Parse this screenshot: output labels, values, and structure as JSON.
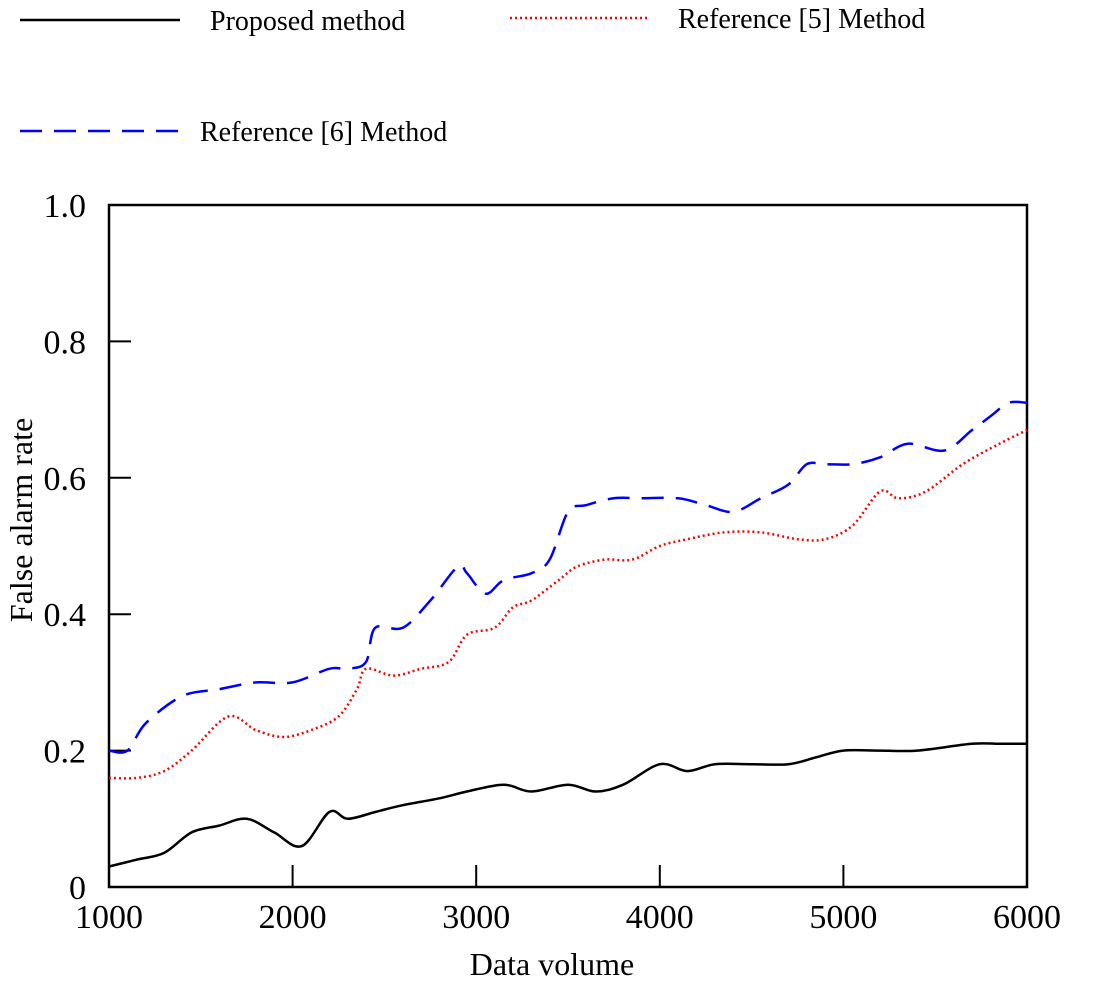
{
  "chart_data": {
    "type": "line",
    "xlabel": "Data volume",
    "ylabel": "False alarm rate",
    "xlim": [
      1000,
      6000
    ],
    "ylim": [
      0,
      1.0
    ],
    "x_ticks": [
      "1000",
      "2000",
      "3000",
      "4000",
      "5000",
      "6000"
    ],
    "y_ticks": [
      "0",
      "0.2",
      "0.4",
      "0.6",
      "0.8",
      "1.0"
    ],
    "legend_position": "top",
    "series": [
      {
        "name": "Proposed method",
        "color": "#000000",
        "style": "solid",
        "x": [
          1000,
          1150,
          1300,
          1450,
          1600,
          1750,
          1900,
          2050,
          2200,
          2300,
          2450,
          2600,
          2800,
          2950,
          3150,
          3300,
          3500,
          3650,
          3800,
          4000,
          4150,
          4300,
          4500,
          4700,
          4850,
          5000,
          5200,
          5400,
          5700,
          5850,
          6000
        ],
        "y": [
          0.03,
          0.04,
          0.05,
          0.08,
          0.09,
          0.1,
          0.08,
          0.06,
          0.11,
          0.1,
          0.11,
          0.12,
          0.13,
          0.14,
          0.15,
          0.14,
          0.15,
          0.14,
          0.15,
          0.18,
          0.17,
          0.18,
          0.18,
          0.18,
          0.19,
          0.2,
          0.2,
          0.2,
          0.21,
          0.21,
          0.21
        ]
      },
      {
        "name": "Reference [5] Method",
        "color": "#ff0000",
        "style": "dotted",
        "x": [
          1000,
          1150,
          1300,
          1450,
          1650,
          1800,
          1950,
          2100,
          2250,
          2350,
          2400,
          2550,
          2700,
          2850,
          2950,
          3100,
          3200,
          3300,
          3450,
          3550,
          3700,
          3850,
          4000,
          4150,
          4350,
          4550,
          4750,
          4900,
          5050,
          5200,
          5300,
          5450,
          5650,
          5850,
          6000
        ],
        "y": [
          0.16,
          0.16,
          0.17,
          0.2,
          0.25,
          0.23,
          0.22,
          0.23,
          0.25,
          0.29,
          0.32,
          0.31,
          0.32,
          0.33,
          0.37,
          0.38,
          0.41,
          0.42,
          0.45,
          0.47,
          0.48,
          0.48,
          0.5,
          0.51,
          0.52,
          0.52,
          0.51,
          0.51,
          0.53,
          0.58,
          0.57,
          0.58,
          0.62,
          0.65,
          0.67
        ]
      },
      {
        "name": "Reference [6] Method",
        "color": "#0000ff",
        "style": "dashed",
        "x": [
          1000,
          1100,
          1200,
          1400,
          1600,
          1800,
          2000,
          2200,
          2300,
          2400,
          2450,
          2600,
          2750,
          2900,
          2950,
          3050,
          3150,
          3300,
          3400,
          3500,
          3600,
          3750,
          3900,
          4100,
          4250,
          4400,
          4550,
          4700,
          4800,
          4900,
          5050,
          5200,
          5350,
          5550,
          5700,
          5800,
          5900,
          6000
        ],
        "y": [
          0.2,
          0.2,
          0.24,
          0.28,
          0.29,
          0.3,
          0.3,
          0.32,
          0.32,
          0.33,
          0.38,
          0.38,
          0.42,
          0.47,
          0.46,
          0.43,
          0.45,
          0.46,
          0.48,
          0.55,
          0.56,
          0.57,
          0.57,
          0.57,
          0.56,
          0.55,
          0.57,
          0.59,
          0.62,
          0.62,
          0.62,
          0.63,
          0.65,
          0.64,
          0.67,
          0.69,
          0.71,
          0.71
        ]
      }
    ]
  }
}
